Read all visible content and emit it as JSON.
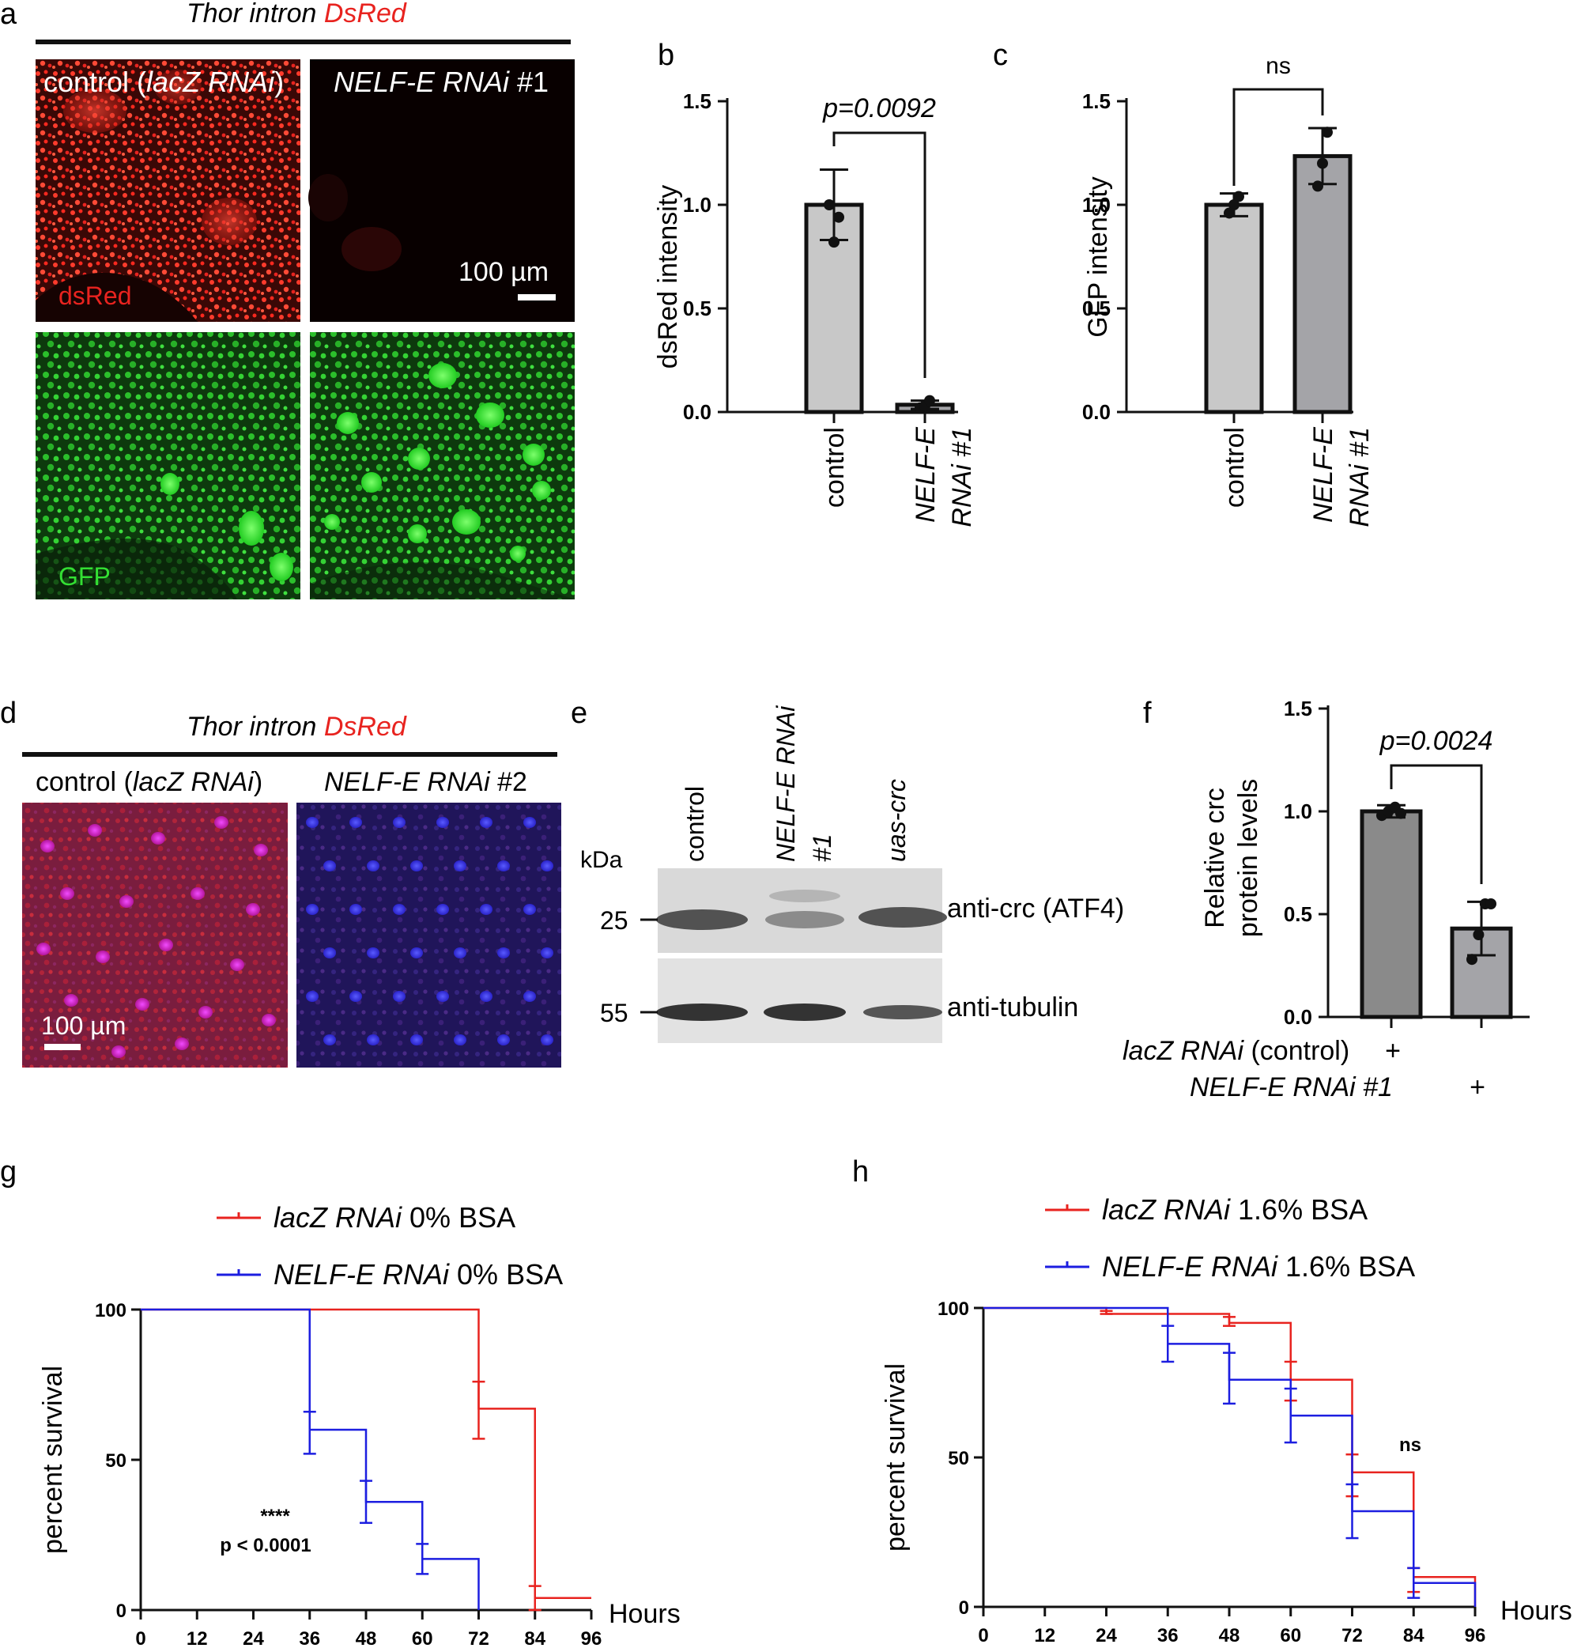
{
  "panel_letters": [
    "a",
    "b",
    "c",
    "d",
    "e",
    "f",
    "g",
    "h"
  ],
  "panel_a": {
    "header_black": "Thor intron ",
    "header_red": "DsRed",
    "label_control_prefix": "control (",
    "label_control_italic": "lacZ RNAi",
    "label_control_suffix": ")",
    "label_nelf_italic": "NELF-E RNAi",
    "label_nelf_suffix": " #1",
    "scale_bar": "100 µm",
    "channel_red": "dsRed",
    "channel_green": "GFP"
  },
  "panel_d": {
    "header_black": "Thor intron ",
    "header_red": "DsRed",
    "label_control_prefix": "control (",
    "label_control_italic": "lacZ RNAi",
    "label_control_suffix": ")",
    "label_nelf_italic": "NELF-E RNAi",
    "label_nelf_suffix": " #2",
    "scale_bar": "100 µm"
  },
  "panel_e": {
    "kda_label": "kDa",
    "lanes": [
      "control",
      "NELF-E RNAi #1",
      "uas-crc"
    ],
    "markers": [
      "25",
      "55"
    ],
    "bands": [
      "anti-crc (ATF4)",
      "anti-tubulin"
    ]
  },
  "colors": {
    "red": "#e8231f",
    "blue": "#1c1ee0",
    "bar_light": "#c8c8c8",
    "bar_mid": "#a4a4a8",
    "bar_dark": "#8a8a8a"
  },
  "chart_data": [
    {
      "id": "b",
      "type": "bar",
      "categories": [
        "control",
        "NELF-E RNAi #1"
      ],
      "values": [
        1.0,
        0.035
      ],
      "error": [
        0.17,
        0.02
      ],
      "points": [
        [
          1.0,
          0.82,
          0.94
        ],
        [
          0.02,
          0.03,
          0.055
        ]
      ],
      "ylabel": "dsRed intensity",
      "yticks": [
        "0.0",
        "0.5",
        "1.0",
        "1.5"
      ],
      "ylim": [
        0,
        1.5
      ],
      "annotation": "p=0.0092"
    },
    {
      "id": "c",
      "type": "bar",
      "categories": [
        "control",
        "NELF-E RNAi #1"
      ],
      "values": [
        1.0,
        1.235
      ],
      "error": [
        0.055,
        0.135
      ],
      "points": [
        [
          0.96,
          1.0,
          1.04
        ],
        [
          1.09,
          1.2,
          1.35
        ]
      ],
      "ylabel": "GFP intensity",
      "yticks": [
        "0.0",
        "0.5",
        "1.0",
        "1.5"
      ],
      "ylim": [
        0,
        1.5
      ],
      "annotation": "ns"
    },
    {
      "id": "f",
      "type": "bar",
      "categories": [
        "lacZ RNAi (control)",
        "NELF-E RNAi #1"
      ],
      "values": [
        1.0,
        0.43
      ],
      "error": [
        0.03,
        0.13
      ],
      "points": [
        [
          0.98,
          1.0,
          1.02,
          0.99
        ],
        [
          0.28,
          0.4,
          0.55,
          0.55
        ]
      ],
      "ylabel_lines": [
        "Relative crc",
        "protein levels"
      ],
      "yticks": [
        "0.0",
        "0.5",
        "1.0",
        "1.5"
      ],
      "ylim": [
        0,
        1.5
      ],
      "annotation": "p=0.0024",
      "row1_label_italic": "lacZ RNAi",
      "row1_label_rest": " (control)",
      "row1_marks": [
        "+",
        ""
      ],
      "row2_label_italic": "NELF-E RNAi  #1",
      "row2_marks": [
        "",
        "+"
      ]
    },
    {
      "id": "g",
      "type": "line",
      "subtype": "survival-step",
      "xlabel": "Hours",
      "ylabel": "percent survival",
      "xticks": [
        "0",
        "12",
        "24",
        "36",
        "48",
        "60",
        "72",
        "84",
        "96"
      ],
      "yticks": [
        "0",
        "50",
        "100"
      ],
      "xlim": [
        0,
        96
      ],
      "ylim": [
        0,
        100
      ],
      "series": [
        {
          "name_italic": "lacZ RNAi",
          "name_rest": " 0% BSA",
          "x": [
            0,
            72,
            84,
            96
          ],
          "y": [
            100,
            67,
            4,
            4
          ],
          "err": [
            [
              72,
              57,
              76
            ],
            [
              84,
              0,
              8
            ]
          ]
        },
        {
          "name_italic": "NELF-E RNAi",
          "name_rest": " 0% BSA",
          "x": [
            0,
            36,
            48,
            60,
            72
          ],
          "y": [
            100,
            60,
            36,
            17,
            0
          ],
          "err": [
            [
              36,
              52,
              66
            ],
            [
              48,
              29,
              43
            ],
            [
              60,
              12,
              22
            ]
          ]
        }
      ],
      "annotation_stars": "****",
      "annotation_p": "p < 0.0001"
    },
    {
      "id": "h",
      "type": "line",
      "subtype": "survival-step",
      "xlabel": "Hours",
      "ylabel": "percent survival",
      "xticks": [
        "0",
        "12",
        "24",
        "36",
        "48",
        "60",
        "72",
        "84",
        "96"
      ],
      "yticks": [
        "0",
        "50",
        "100"
      ],
      "xlim": [
        0,
        96
      ],
      "ylim": [
        0,
        100
      ],
      "series": [
        {
          "name_italic": "lacZ RNAi",
          "name_rest": " 1.6% BSA",
          "x": [
            0,
            24,
            48,
            60,
            72,
            84,
            96
          ],
          "y": [
            100,
            98,
            95,
            76,
            45,
            10,
            0
          ],
          "err": [
            [
              24,
              98,
              99
            ],
            [
              48,
              94,
              97
            ],
            [
              60,
              69,
              82
            ],
            [
              72,
              37,
              51
            ],
            [
              84,
              5,
              13
            ]
          ]
        },
        {
          "name_italic": "NELF-E RNAi",
          "name_rest": " 1.6% BSA",
          "x": [
            0,
            36,
            48,
            60,
            72,
            84,
            96
          ],
          "y": [
            100,
            88,
            76,
            64,
            32,
            8,
            0
          ],
          "err": [
            [
              36,
              82,
              94
            ],
            [
              48,
              68,
              85
            ],
            [
              60,
              55,
              73
            ],
            [
              72,
              23,
              41
            ],
            [
              84,
              3,
              13
            ]
          ]
        }
      ],
      "annotation": "ns"
    }
  ]
}
